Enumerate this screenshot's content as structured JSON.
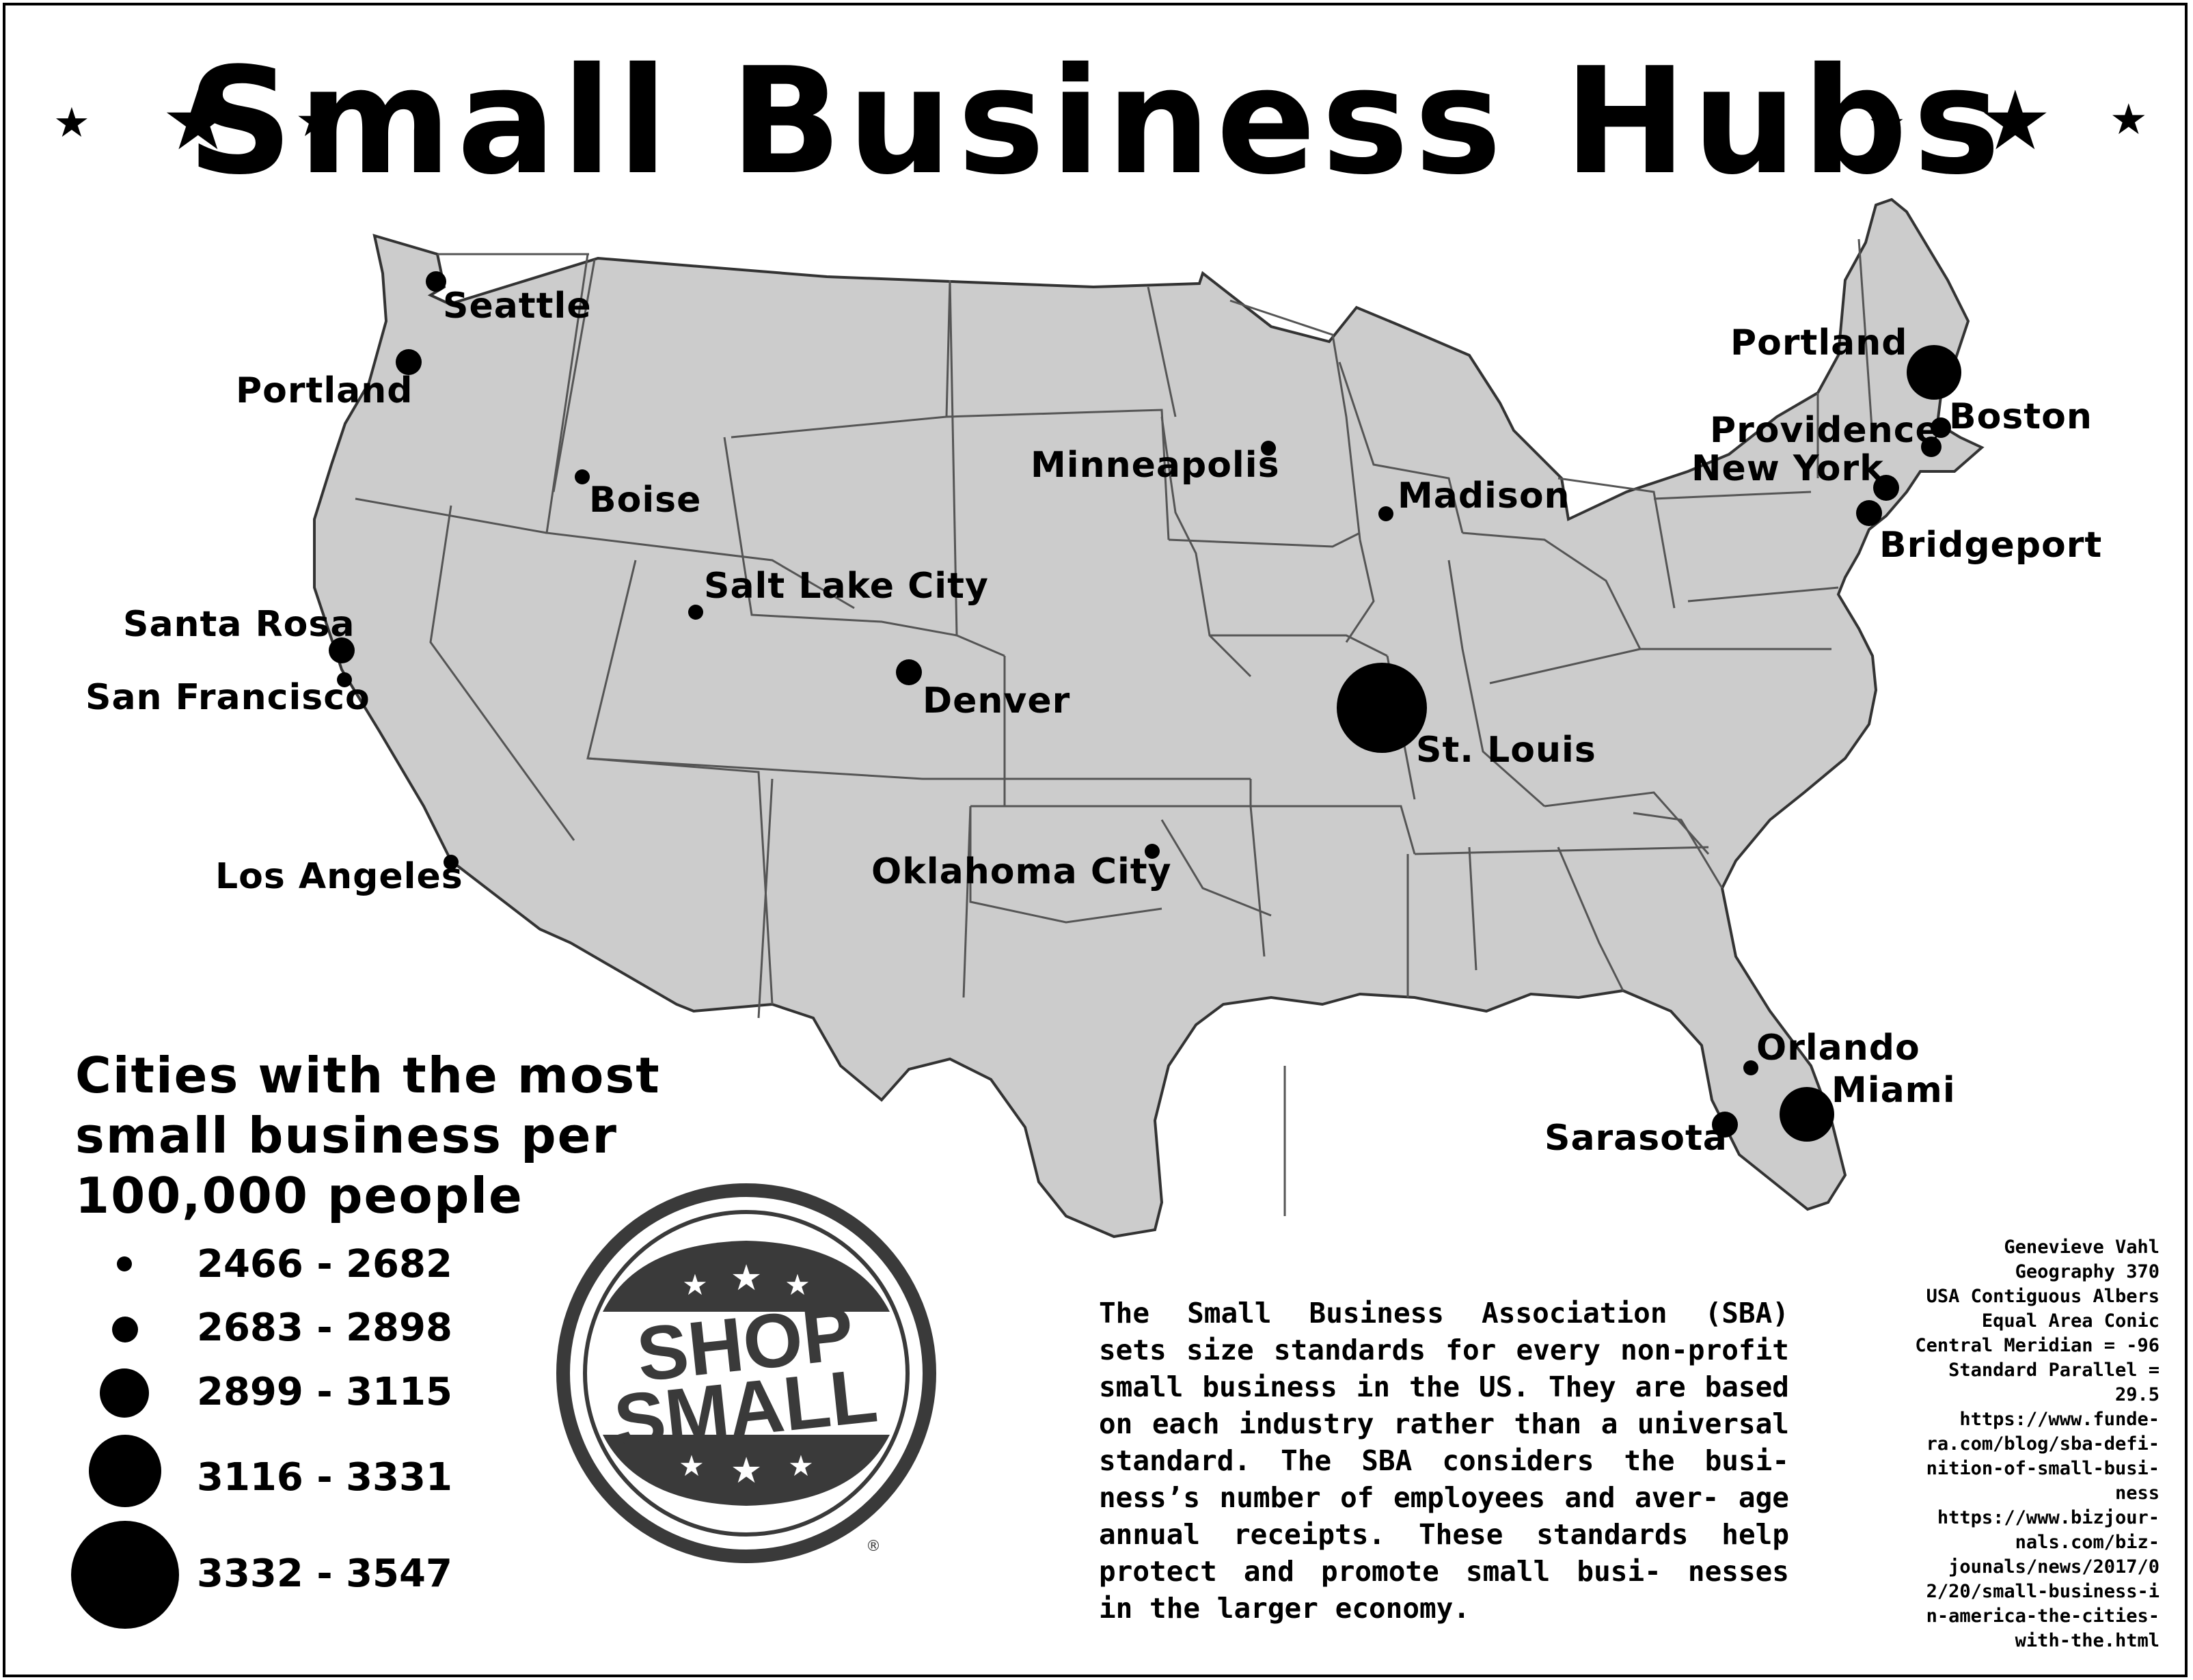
{
  "title": "Small Business Hubs",
  "map": {
    "land_color": "#cccccc",
    "border_color": "#555555",
    "dot_color": "#000000",
    "cities": [
      {
        "name": "Seattle",
        "size_class": 2
      },
      {
        "name": "Portland",
        "size_class": 3
      },
      {
        "name": "Boise",
        "size_class": 1
      },
      {
        "name": "Santa Rosa",
        "size_class": 3
      },
      {
        "name": "San Francisco",
        "size_class": 1
      },
      {
        "name": "Los Angeles",
        "size_class": 1
      },
      {
        "name": "Salt Lake City",
        "size_class": 1
      },
      {
        "name": "Denver",
        "size_class": 3
      },
      {
        "name": "Oklahoma City",
        "size_class": 1
      },
      {
        "name": "Minneapolis",
        "size_class": 1
      },
      {
        "name": "Madison",
        "size_class": 1
      },
      {
        "name": "St. Louis",
        "size_class": 5
      },
      {
        "name": "Portland",
        "size_class": 4
      },
      {
        "name": "Boston",
        "size_class": 2
      },
      {
        "name": "Providence",
        "size_class": 2
      },
      {
        "name": "New York",
        "size_class": 3
      },
      {
        "name": "Bridgeport",
        "size_class": 3
      },
      {
        "name": "Orlando",
        "size_class": 1
      },
      {
        "name": "Miami",
        "size_class": 4
      },
      {
        "name": "Sarasota",
        "size_class": 3
      }
    ]
  },
  "legend": {
    "title_lines": [
      "Cities with the most",
      "small business per",
      "100,000 people"
    ],
    "classes": [
      {
        "label": "2466 - 2682",
        "size_class": 1
      },
      {
        "label": "2683 - 2898",
        "size_class": 2
      },
      {
        "label": "2899 - 3115",
        "size_class": 3
      },
      {
        "label": "3116 - 3331",
        "size_class": 4
      },
      {
        "label": "3332 - 3547",
        "size_class": 5
      }
    ]
  },
  "badge": {
    "line1": "SHOP",
    "line2": "SMALL",
    "registered": "®"
  },
  "description": "The Small Business Association (SBA) sets size standards for every non-profit small business in the US. They are based on each industry rather than a universal standard. The SBA considers the busi- ness’s number of employees and aver- age annual receipts. These standards help protect and promote small busi- nesses in the larger economy.",
  "credits": [
    "Genevieve Vahl",
    "Geography 370",
    "USA Contiguous Albers",
    "Equal Area Conic",
    "Central Meridian = -96",
    "Standard Parallel =",
    "29.5",
    "https://www.funde-",
    "ra.com/blog/sba-defi-",
    "nition-of-small-busi-",
    "ness",
    "https://www.bizjour-",
    "nals.com/biz-",
    "jounals/news/2017/0",
    "2/20/small-business-i",
    "n-america-the-cities-",
    "with-the.html"
  ]
}
